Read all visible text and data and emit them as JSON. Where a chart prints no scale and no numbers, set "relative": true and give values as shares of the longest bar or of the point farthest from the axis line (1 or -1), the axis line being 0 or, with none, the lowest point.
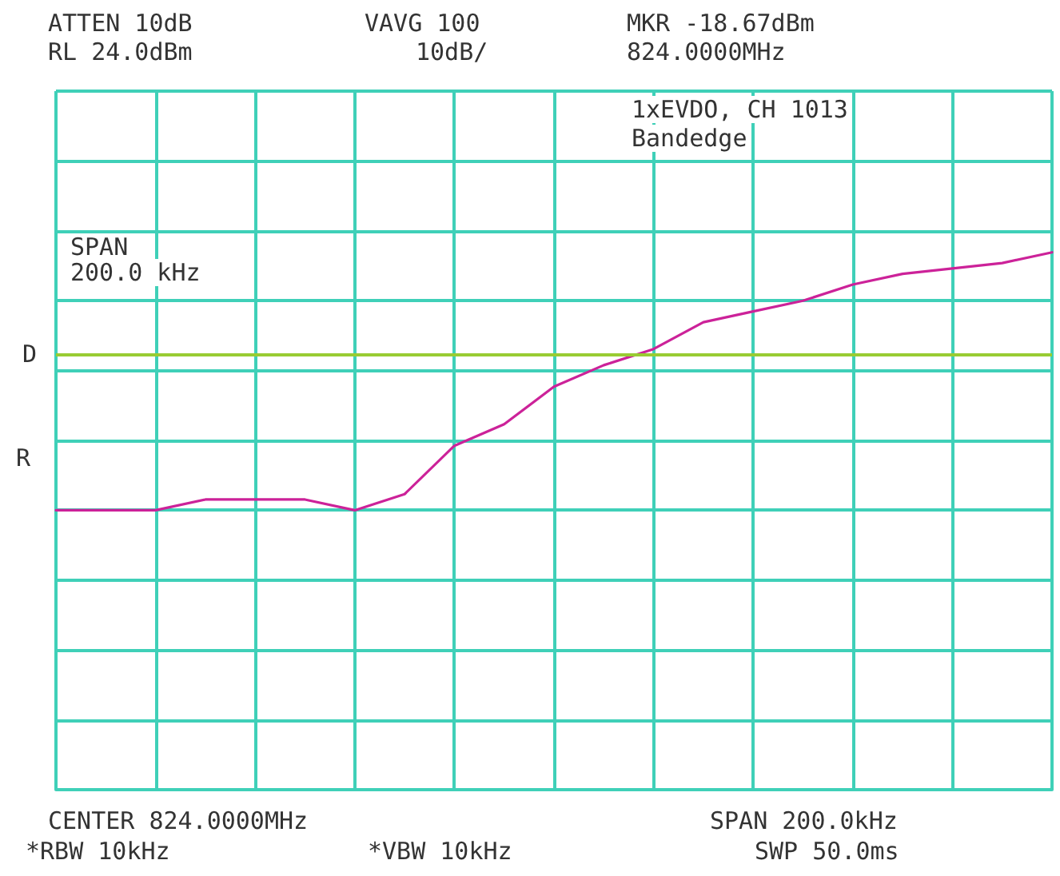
{
  "chart_data": {
    "type": "line",
    "relative": true,
    "categories": [
      null,
      null,
      null,
      null,
      null,
      null,
      null,
      null,
      null,
      null,
      null,
      null,
      null,
      null,
      null,
      null,
      null,
      null,
      null,
      null,
      null
    ],
    "series": [
      {
        "color": "#cc2299",
        "values": [
          0.52,
          0.52,
          0.52,
          0.54,
          0.54,
          0.54,
          0.52,
          0.55,
          0.64,
          0.68,
          0.75,
          0.79,
          0.82,
          0.87,
          0.89,
          0.91,
          0.94,
          0.96,
          0.97,
          0.98,
          1
        ]
      }
    ],
    "grid": true,
    "marker": "none",
    "line_style": "solid",
    "ref_lines": [
      {
        "axis": "y",
        "value": 0.81,
        "label": "D",
        "color": "#99cc33"
      }
    ],
    "annotations": [
      "ATTEN 10dB",
      "RL 24.0dBm",
      "VAVG 100",
      "10dB/",
      "MKR -18.67dBm",
      "824.0000MHz",
      "1xEVDO, CH 1013",
      "Bandedge",
      "SPAN",
      "200.0 kHz",
      "R",
      "CENTER 824.0000MHz",
      "SPAN 200.0kHz",
      "*RBW 10kHz",
      "*VBW 10kHz",
      "SWP 50.0ms"
    ]
  }
}
